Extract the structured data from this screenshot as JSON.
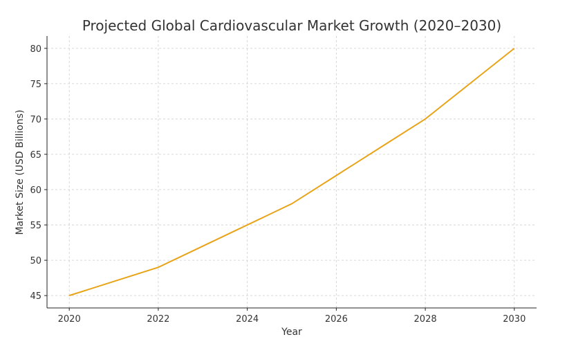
{
  "chart_data": {
    "type": "line",
    "title": "Projected Global Cardiovascular Market Growth (2020–2030)",
    "xlabel": "Year",
    "ylabel": "Market Size (USD Billions)",
    "x": [
      2020,
      2021,
      2022,
      2023,
      2024,
      2025,
      2026,
      2027,
      2028,
      2029,
      2030
    ],
    "series": [
      {
        "name": "Market Size",
        "values": [
          45,
          47,
          49,
          52,
          55,
          58,
          62,
          66,
          70,
          75,
          80
        ],
        "color": "#E8A317"
      }
    ],
    "xticks": [
      "2020",
      "2022",
      "2024",
      "2026",
      "2028",
      "2030"
    ],
    "yticks": [
      "45",
      "50",
      "55",
      "60",
      "65",
      "70",
      "75",
      "80"
    ],
    "xlim": [
      2019.5,
      2030.5
    ],
    "ylim": [
      43.25,
      81.75
    ],
    "grid": true
  }
}
